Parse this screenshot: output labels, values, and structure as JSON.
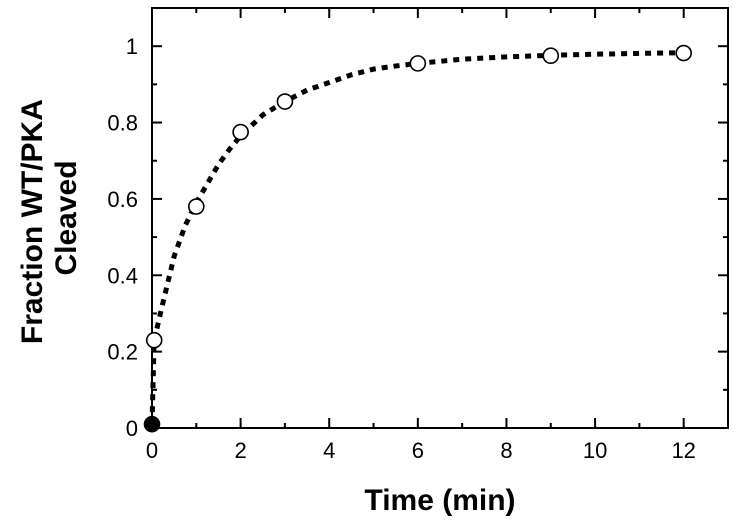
{
  "chart_data": {
    "type": "scatter",
    "xlabel": "Time (min)",
    "ylabel_lines": [
      "Fraction WT/PKA",
      "Cleaved"
    ],
    "xlim": [
      0,
      13
    ],
    "ylim": [
      0,
      1.1
    ],
    "x_ticks": [
      0,
      2,
      4,
      6,
      8,
      10,
      12
    ],
    "y_ticks": [
      0,
      0.2,
      0.4,
      0.6,
      0.8,
      1
    ],
    "x_tick_labels": [
      "0",
      "2",
      "4",
      "6",
      "8",
      "10",
      "12"
    ],
    "y_tick_labels": [
      "0",
      "0.2",
      "0.4",
      "0.6",
      "0.8",
      "1"
    ],
    "grid": false,
    "series": [
      {
        "marker": "open-circle",
        "x": [
          0.05,
          1,
          2,
          3,
          6,
          9,
          12
        ],
        "y": [
          0.23,
          0.58,
          0.775,
          0.855,
          0.955,
          0.975,
          0.982
        ]
      },
      {
        "marker": "filled-circle",
        "x": [
          0
        ],
        "y": [
          0.01
        ]
      }
    ],
    "fit_curve": {
      "style": "dotted",
      "x": [
        0,
        0.05,
        0.25,
        0.5,
        0.75,
        1,
        1.25,
        1.5,
        1.75,
        2,
        2.5,
        3,
        3.5,
        4,
        4.5,
        5,
        5.5,
        6,
        7,
        8,
        9,
        10,
        11,
        12
      ],
      "y": [
        0.01,
        0.23,
        0.33,
        0.45,
        0.53,
        0.59,
        0.64,
        0.69,
        0.73,
        0.765,
        0.82,
        0.855,
        0.885,
        0.905,
        0.925,
        0.94,
        0.948,
        0.955,
        0.966,
        0.972,
        0.976,
        0.979,
        0.981,
        0.983
      ]
    }
  }
}
